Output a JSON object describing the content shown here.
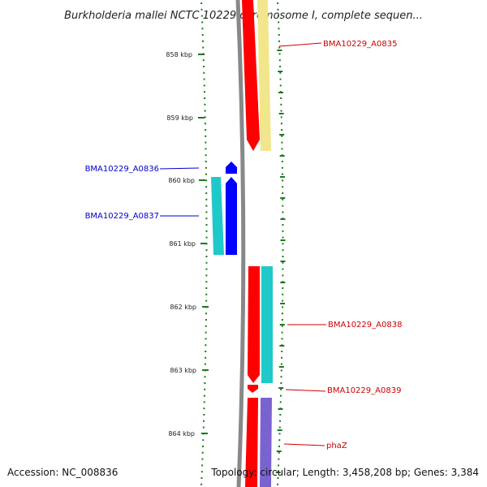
{
  "title": "Burkholderia mallei NCTC 10229 chromosome I, complete sequen...",
  "footer": {
    "accession": "Accession: NC_008836",
    "summary": "Topology: circular; Length: 3,458,208 bp; Genes: 3,384"
  },
  "ticks": [
    "858 kbp",
    "859 kbp",
    "860 kbp",
    "861 kbp",
    "862 kbp",
    "863 kbp",
    "864 kbp"
  ],
  "genes_left": [
    {
      "name": "BMA10229_A0836",
      "color": "#0000cc"
    },
    {
      "name": "BMA10229_A0837",
      "color": "#0000cc"
    }
  ],
  "genes_right": [
    {
      "name": "BMA10229_A0835",
      "color": "#cc0000"
    },
    {
      "name": "BMA10229_A0838",
      "color": "#cc0000"
    },
    {
      "name": "BMA10229_A0839",
      "color": "#cc0000"
    },
    {
      "name": "phaZ",
      "color": "#cc0000"
    }
  ],
  "colors": {
    "backbone": "#888888",
    "tick": "#1a7a1a",
    "cds_forward": "#ff0000",
    "cds_reverse": "#0000ff",
    "cog_yellow": "#f2e68c",
    "cog_cyan": "#1fc9c9",
    "cog_purple": "#7a63d0"
  }
}
